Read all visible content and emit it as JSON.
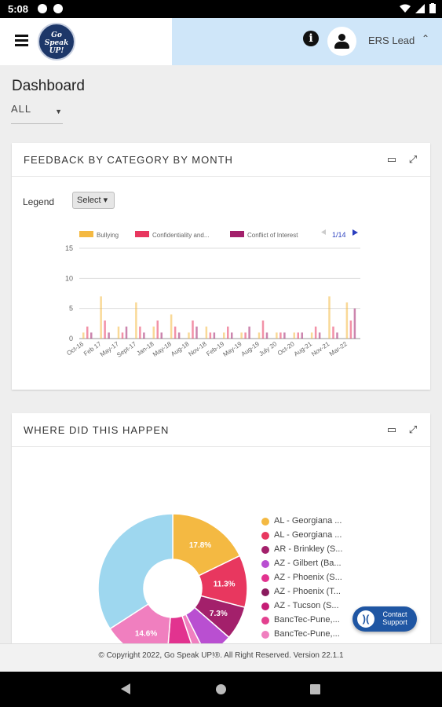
{
  "status_bar": {
    "time": "5:08"
  },
  "header": {
    "logo_text": "Go Speak UP!",
    "user_name": "ERS Lead"
  },
  "page": {
    "title": "Dashboard",
    "filter_value": "ALL"
  },
  "feedback_card": {
    "title": "FEEDBACK BY CATEGORY BY MONTH",
    "legend_label": "Legend",
    "select_label": "Select",
    "chart_legend": [
      {
        "label": "Bullying",
        "color": "#f4b942"
      },
      {
        "label": "Confidentiality and...",
        "color": "#e8375f"
      },
      {
        "label": "Conflict of Interest",
        "color": "#a3206b"
      }
    ],
    "legend_page": "1/14"
  },
  "where_card": {
    "title": "WHERE DID THIS HAPPEN",
    "legend_items": [
      {
        "label": "AL - Georgiana ...",
        "color": "#f4b942"
      },
      {
        "label": "AL - Georgiana ...",
        "color": "#e8375f"
      },
      {
        "label": "AR - Brinkley (S...",
        "color": "#a3206b"
      },
      {
        "label": "AZ - Gilbert (Ba...",
        "color": "#b94fd1"
      },
      {
        "label": "AZ - Phoenix (S...",
        "color": "#e2338f"
      },
      {
        "label": "AZ - Phoenix (T...",
        "color": "#8a1a5e"
      },
      {
        "label": "AZ - Tucson (S...",
        "color": "#c51d75"
      },
      {
        "label": "BancTec-Pune,...",
        "color": "#e3418f"
      },
      {
        "label": "BancTec-Pune,...",
        "color": "#f07fbf"
      }
    ]
  },
  "chart_data": [
    {
      "type": "bar",
      "title": "FEEDBACK BY CATEGORY BY MONTH",
      "categories": [
        "Oct-16",
        "Feb 17",
        "May-17",
        "Sept-17",
        "Jan-18",
        "May-18",
        "Aug-18",
        "Nov-18",
        "Feb-19",
        "May-19",
        "Aug-19",
        "July 20",
        "Oct-20",
        "Aug-21",
        "Nov-21",
        "Mar-22"
      ],
      "series": [
        {
          "name": "Bullying",
          "values": [
            1,
            7,
            2,
            6,
            2,
            4,
            1,
            2,
            1,
            1,
            1,
            1,
            1,
            1,
            7,
            6
          ]
        },
        {
          "name": "Confidentiality and...",
          "values": [
            2,
            3,
            1,
            2,
            3,
            2,
            3,
            1,
            2,
            1,
            3,
            1,
            1,
            2,
            2,
            3
          ]
        },
        {
          "name": "Conflict of Interest",
          "values": [
            1,
            1,
            2,
            1,
            1,
            1,
            2,
            1,
            1,
            2,
            1,
            1,
            1,
            1,
            1,
            5
          ]
        }
      ],
      "ylim": [
        0,
        15
      ],
      "yticks": [
        0,
        5,
        10,
        15
      ]
    },
    {
      "type": "pie",
      "title": "WHERE DID THIS HAPPEN",
      "slices": [
        {
          "label": "AL - Georgiana ...",
          "value": 17.8,
          "color": "#f4b942",
          "display": "17.8%"
        },
        {
          "label": "AL - Georgiana ...",
          "value": 11.3,
          "color": "#e8375f",
          "display": "11.3%"
        },
        {
          "label": "AR - Brinkley (S...",
          "value": 7.3,
          "color": "#a3206b",
          "display": "7.3%"
        },
        {
          "label": "AZ - Gilbert (Ba...",
          "value": 6.2,
          "color": "#b94fd1",
          "display": ""
        },
        {
          "label": "AZ - Phoenix (S...",
          "value": 2.2,
          "color": "#f07fbf",
          "display": ""
        },
        {
          "label": "AZ - Phoenix (T...",
          "value": 6.5,
          "color": "#e2338f",
          "display": ""
        },
        {
          "label": "BancTec-Pune,...",
          "value": 14.6,
          "color": "#f07fbf",
          "display": "14.6%"
        },
        {
          "label": "",
          "value": 34.1,
          "color": "#9ed7ef",
          "display": ""
        }
      ]
    }
  ],
  "footer": {
    "text": "© Copyright 2022, Go Speak UP!®.   All Right Reserved. Version 22.1.1"
  },
  "contact": {
    "line1": "Contact",
    "line2": "Support"
  }
}
